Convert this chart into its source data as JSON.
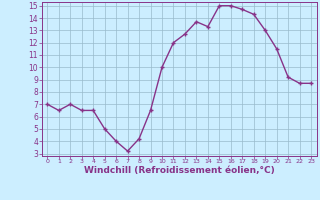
{
  "x": [
    0,
    1,
    2,
    3,
    4,
    5,
    6,
    7,
    8,
    9,
    10,
    11,
    12,
    13,
    14,
    15,
    16,
    17,
    18,
    19,
    20,
    21,
    22,
    23
  ],
  "y": [
    7.0,
    6.5,
    7.0,
    6.5,
    6.5,
    5.0,
    4.0,
    3.2,
    4.2,
    6.5,
    10.0,
    12.0,
    12.7,
    13.7,
    13.3,
    15.0,
    15.0,
    14.7,
    14.3,
    13.0,
    11.5,
    9.2,
    8.7,
    8.7
  ],
  "line_color": "#883388",
  "marker": "+",
  "marker_size": 3.5,
  "marker_linewidth": 1.0,
  "xlabel": "Windchill (Refroidissement éolien,°C)",
  "xlim": [
    -0.5,
    23.5
  ],
  "ylim": [
    2.8,
    15.3
  ],
  "yticks": [
    3,
    4,
    5,
    6,
    7,
    8,
    9,
    10,
    11,
    12,
    13,
    14,
    15
  ],
  "xticks": [
    0,
    1,
    2,
    3,
    4,
    5,
    6,
    7,
    8,
    9,
    10,
    11,
    12,
    13,
    14,
    15,
    16,
    17,
    18,
    19,
    20,
    21,
    22,
    23
  ],
  "bg_color": "#cceeff",
  "grid_color": "#99bbcc",
  "axis_label_color": "#883388",
  "tick_color": "#883388",
  "xlabel_fontsize": 6.5,
  "ytick_fontsize": 5.5,
  "xtick_fontsize": 4.5,
  "linewidth": 1.0
}
